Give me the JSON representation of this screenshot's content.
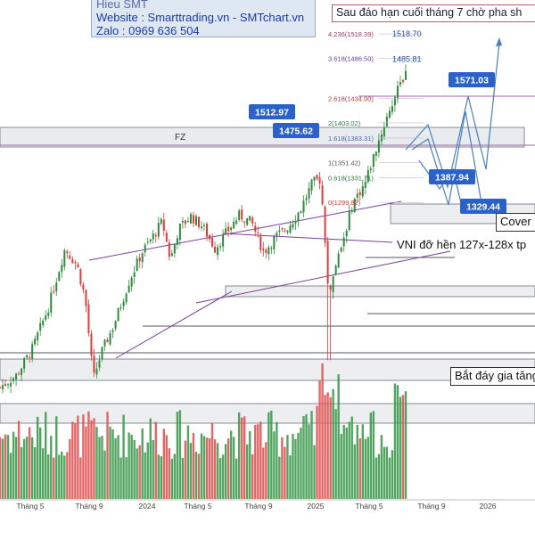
{
  "header": {
    "line0": "Hieu SMT",
    "website": "Website : Smarttrading.vn - SMTchart.vn",
    "zalo": "Zalo : 0969 636 504"
  },
  "notes": {
    "top": "Sau đáo hạn cuối tháng 7 chờ pha sh",
    "cover": "Cover",
    "vni": "VNI đỡ hền 127x-128x tp",
    "bottom": "Bắt đáy gia tăng"
  },
  "zone_label": "FZ",
  "colors": {
    "up": "#2e8b3c",
    "down": "#e03a3a",
    "vol_up": "#3f9b4f",
    "vol_down": "#e05555",
    "trend": "#7a3f9a",
    "support": "#555566",
    "callout": "#2a62c9",
    "forecast": "#4a7fbf"
  },
  "callouts": [
    {
      "label": "1571.03",
      "value": 1571.03
    },
    {
      "label": "1512.97",
      "value": 1512.97
    },
    {
      "label": "1475.62",
      "value": 1475.62
    },
    {
      "label": "1387.94",
      "value": 1387.94
    },
    {
      "label": "1329.44",
      "value": 1329.44
    }
  ],
  "fib_levels": [
    {
      "label": "4.236(1518.39)",
      "value": 1518.39
    },
    {
      "label": "3.618(1486.50)",
      "value": 1486.5
    },
    {
      "label": "2.618(1434.90)",
      "value": 1434.9
    },
    {
      "label": "2(1403.02)",
      "value": 1403.02
    },
    {
      "label": "1.618(1383.31)",
      "value": 1383.31
    },
    {
      "label": "1(1351.42)",
      "value": 1351.42
    },
    {
      "label": "0.618(1331.71)",
      "value": 1331.71
    },
    {
      "label": "0(1299.82)",
      "value": 1299.82
    }
  ],
  "target_labels": [
    {
      "label": "1518.70",
      "value": 1518.7
    },
    {
      "label": "1485.81",
      "value": 1485.81
    }
  ],
  "chart_data": {
    "type": "candlestick",
    "x_ticks": [
      "Tháng 5",
      "Tháng 9",
      "2024",
      "Tháng 5",
      "Tháng 9",
      "2025",
      "Tháng 5",
      "Tháng 9",
      "2026"
    ],
    "price_anchors": [
      {
        "t": 0.0,
        "v": 1060
      },
      {
        "t": 0.04,
        "v": 1075
      },
      {
        "t": 0.08,
        "v": 1110
      },
      {
        "t": 0.12,
        "v": 1165
      },
      {
        "t": 0.16,
        "v": 1240
      },
      {
        "t": 0.19,
        "v": 1218
      },
      {
        "t": 0.21,
        "v": 1175
      },
      {
        "t": 0.23,
        "v": 1070
      },
      {
        "t": 0.25,
        "v": 1105
      },
      {
        "t": 0.28,
        "v": 1140
      },
      {
        "t": 0.32,
        "v": 1200
      },
      {
        "t": 0.35,
        "v": 1235
      },
      {
        "t": 0.38,
        "v": 1258
      },
      {
        "t": 0.4,
        "v": 1275
      },
      {
        "t": 0.42,
        "v": 1225
      },
      {
        "t": 0.44,
        "v": 1265
      },
      {
        "t": 0.47,
        "v": 1282
      },
      {
        "t": 0.5,
        "v": 1268
      },
      {
        "t": 0.53,
        "v": 1240
      },
      {
        "t": 0.56,
        "v": 1262
      },
      {
        "t": 0.59,
        "v": 1283
      },
      {
        "t": 0.62,
        "v": 1274
      },
      {
        "t": 0.65,
        "v": 1235
      },
      {
        "t": 0.68,
        "v": 1255
      },
      {
        "t": 0.71,
        "v": 1268
      },
      {
        "t": 0.74,
        "v": 1290
      },
      {
        "t": 0.77,
        "v": 1325
      },
      {
        "t": 0.79,
        "v": 1330
      },
      {
        "t": 0.81,
        "v": 1180
      },
      {
        "t": 0.84,
        "v": 1240
      },
      {
        "t": 0.87,
        "v": 1300
      },
      {
        "t": 0.9,
        "v": 1325
      },
      {
        "t": 0.93,
        "v": 1375
      },
      {
        "t": 0.96,
        "v": 1420
      },
      {
        "t": 1.0,
        "v": 1470
      }
    ],
    "volume_spike": "April 2025 sell-off",
    "ylim": [
      1040,
      1640
    ]
  }
}
